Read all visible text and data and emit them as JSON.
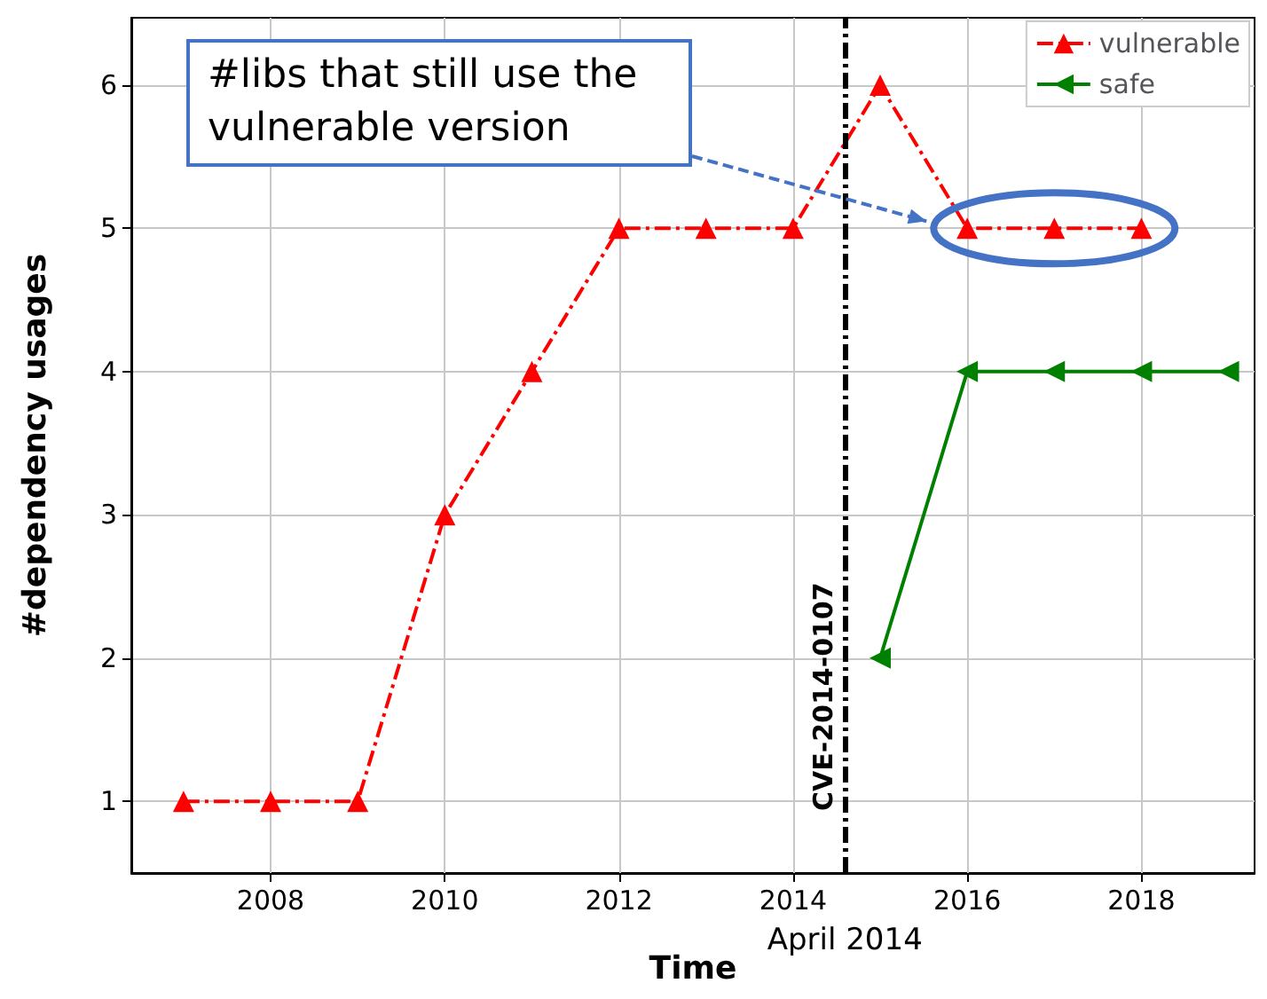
{
  "chart_data": {
    "type": "line",
    "xlabel": "Time",
    "ylabel": "#dependency usages",
    "xlim": [
      2006.4,
      2019.3
    ],
    "xticks": [
      2008,
      2010,
      2012,
      2014,
      2016,
      2018
    ],
    "ylim": [
      0.5,
      6.47
    ],
    "yticks": [
      1,
      2,
      3,
      4,
      5,
      6
    ],
    "series": [
      {
        "name": "vulnerable",
        "color": "#ff0000",
        "marker": "triangle",
        "line_style": "dashed",
        "x": [
          2007,
          2008,
          2009,
          2010,
          2011,
          2012,
          2013,
          2014,
          2015,
          2016,
          2017,
          2018
        ],
        "values": [
          1,
          1,
          1,
          3,
          4,
          5,
          5,
          5,
          6,
          5,
          5,
          5
        ]
      },
      {
        "name": "safe",
        "color": "#008000",
        "marker": "triangle",
        "line_style": "solid",
        "x": [
          2015,
          2016,
          2017,
          2018,
          2019
        ],
        "values": [
          2,
          4,
          4,
          4,
          4
        ]
      }
    ],
    "ref_lines": [
      {
        "axis": "x",
        "value": 2014.6,
        "label": "CVE-2014-0107",
        "color": "#000000",
        "line_style": "dashed"
      }
    ],
    "annotations": [
      "#libs that still use the vulnerable version",
      "April 2014"
    ],
    "grid": true,
    "legend": "top right"
  }
}
